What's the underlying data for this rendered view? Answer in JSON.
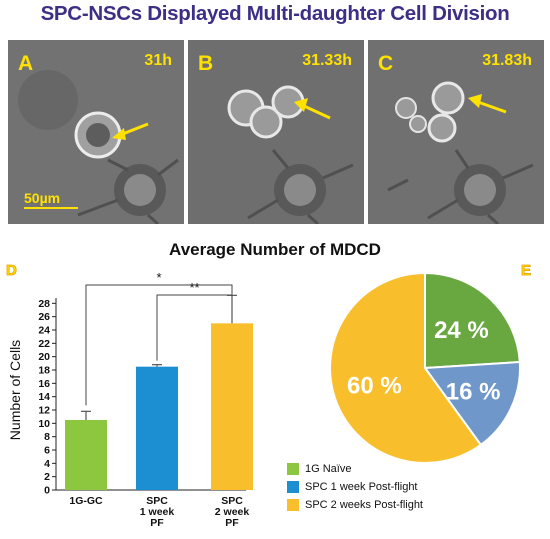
{
  "title": "SPC-NSCs Displayed Multi-daughter Cell Division",
  "panels": [
    {
      "label": "A",
      "time": "31h"
    },
    {
      "label": "B",
      "time": "31.33h"
    },
    {
      "label": "C",
      "time": "31.83h"
    }
  ],
  "scale_bar": "50µm",
  "colors": {
    "title": "#3d2f86",
    "panel_text": "#ffe100",
    "green": "#8dc63f",
    "blue": "#1b8fd2",
    "yellow": "#f9be2b",
    "pie_blue": "#6f97c9",
    "pie_green": "#69a741",
    "pie_yellow": "#f9be2b"
  },
  "chart_data": [
    {
      "type": "bar",
      "title": "Average Number of MDCD",
      "panel_label": "D",
      "ylabel": "Number of Cells",
      "categories": [
        "1G-GC",
        "SPC\n1 week\nPF",
        "SPC\n2 week\nPF"
      ],
      "values": [
        10.5,
        18.5,
        25
      ],
      "errors": [
        1.3,
        0.3,
        4.2
      ],
      "ylim": [
        0,
        30
      ],
      "yticks": [
        0,
        2,
        4,
        6,
        8,
        10,
        12,
        14,
        16,
        18,
        20,
        22,
        24,
        26,
        28
      ],
      "significance": [
        {
          "from": 0,
          "to": 2,
          "label": "*"
        },
        {
          "from": 1,
          "to": 2,
          "label": "**"
        }
      ]
    },
    {
      "type": "pie",
      "panel_label": "E",
      "labels": [
        "1G Naïve",
        "SPC 1 week Post-flight",
        "SPC 2 weeks Post-flight"
      ],
      "values": [
        24,
        16,
        60
      ],
      "value_labels": [
        "24 %",
        "16 %",
        "60 %"
      ]
    }
  ]
}
